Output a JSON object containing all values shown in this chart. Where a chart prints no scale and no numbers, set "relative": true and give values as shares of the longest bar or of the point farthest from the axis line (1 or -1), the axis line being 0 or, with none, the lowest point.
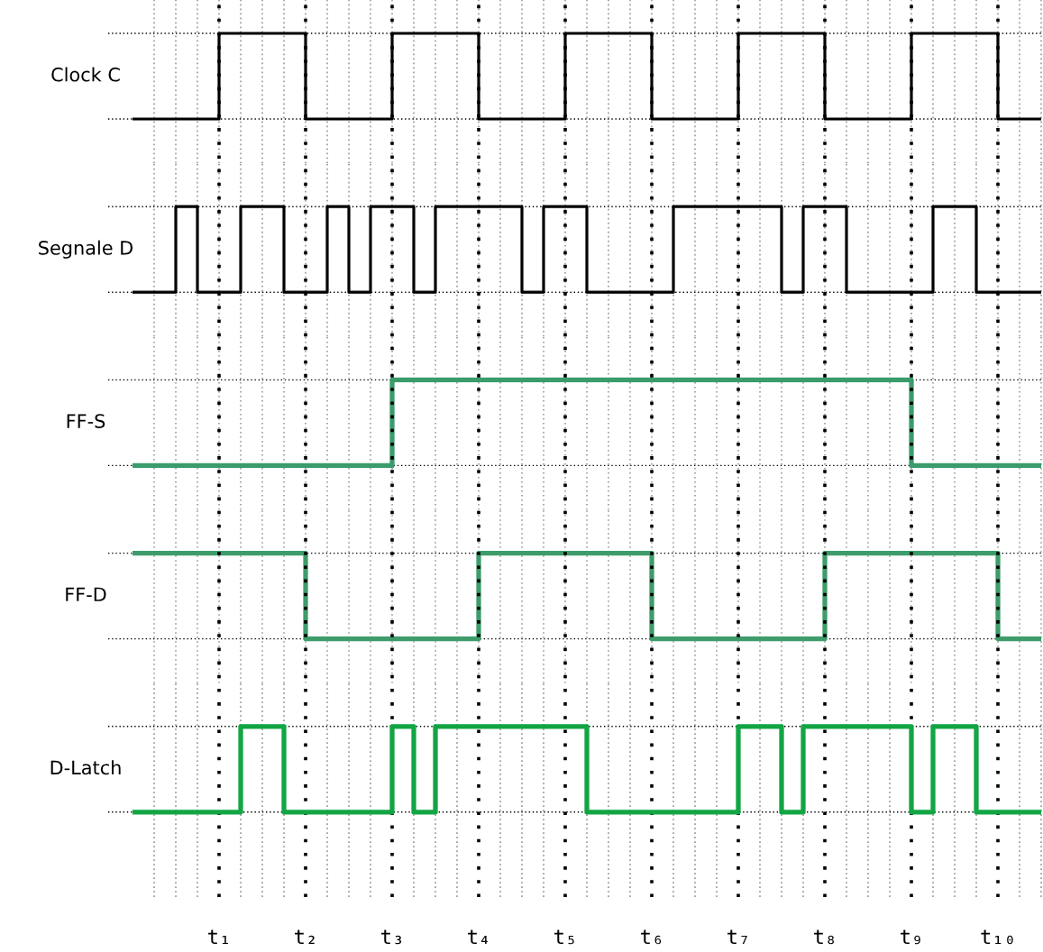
{
  "chart_data": [
    {
      "type": "step",
      "relative": true,
      "ylabel": "Clock C",
      "color": "#000000",
      "grid": true,
      "categories": [
        null,
        null,
        null,
        null,
        null,
        null,
        null,
        null,
        null,
        null,
        null,
        null,
        null,
        null,
        null,
        null,
        null,
        null,
        null,
        null,
        null,
        null,
        null,
        null,
        null,
        null,
        null,
        null,
        null,
        null,
        null,
        null,
        null,
        null,
        null,
        null,
        null,
        null,
        null,
        null,
        null,
        null,
        null
      ],
      "values": [
        0,
        0,
        0,
        0,
        1,
        1,
        1,
        1,
        0,
        0,
        0,
        0,
        1,
        1,
        1,
        1,
        0,
        0,
        0,
        0,
        1,
        1,
        1,
        1,
        0,
        0,
        0,
        0,
        1,
        1,
        1,
        1,
        0,
        0,
        0,
        0,
        1,
        1,
        1,
        1,
        0,
        0,
        0
      ]
    },
    {
      "type": "step",
      "relative": true,
      "ylabel": "Segnale D",
      "color": "#000000",
      "grid": true,
      "categories": [
        null,
        null,
        null,
        null,
        null,
        null,
        null,
        null,
        null,
        null,
        null,
        null,
        null,
        null,
        null,
        null,
        null,
        null,
        null,
        null,
        null,
        null,
        null,
        null,
        null,
        null,
        null,
        null,
        null,
        null,
        null,
        null,
        null,
        null,
        null,
        null,
        null,
        null,
        null,
        null,
        null,
        null,
        null
      ],
      "values": [
        0,
        0,
        1,
        0,
        0,
        1,
        1,
        0,
        0,
        1,
        0,
        1,
        1,
        0,
        1,
        1,
        1,
        1,
        0,
        1,
        1,
        0,
        0,
        0,
        0,
        1,
        1,
        1,
        1,
        1,
        0,
        1,
        1,
        0,
        0,
        0,
        0,
        1,
        1,
        0,
        0,
        0,
        0
      ]
    },
    {
      "type": "step",
      "relative": true,
      "ylabel": "FF-S",
      "color": "#3a9b6b",
      "grid": true,
      "categories": [
        null,
        null,
        null,
        null,
        null,
        null,
        null,
        null,
        null,
        null,
        null,
        null,
        null,
        null,
        null,
        null,
        null,
        null,
        null,
        null,
        null,
        null,
        null,
        null,
        null,
        null,
        null,
        null,
        null,
        null,
        null,
        null,
        null,
        null,
        null,
        null,
        null,
        null,
        null,
        null,
        null,
        null,
        null
      ],
      "values": [
        0,
        0,
        0,
        0,
        0,
        0,
        0,
        0,
        0,
        0,
        0,
        0,
        1,
        1,
        1,
        1,
        1,
        1,
        1,
        1,
        1,
        1,
        1,
        1,
        1,
        1,
        1,
        1,
        1,
        1,
        1,
        1,
        1,
        1,
        1,
        1,
        0,
        0,
        0,
        0,
        0,
        0,
        0
      ]
    },
    {
      "type": "step",
      "relative": true,
      "ylabel": "FF-D",
      "color": "#3e9c6a",
      "grid": true,
      "categories": [
        null,
        null,
        null,
        null,
        null,
        null,
        null,
        null,
        null,
        null,
        null,
        null,
        null,
        null,
        null,
        null,
        null,
        null,
        null,
        null,
        null,
        null,
        null,
        null,
        null,
        null,
        null,
        null,
        null,
        null,
        null,
        null,
        null,
        null,
        null,
        null,
        null,
        null,
        null,
        null,
        null,
        null,
        null
      ],
      "values": [
        1,
        1,
        1,
        1,
        1,
        1,
        1,
        1,
        0,
        0,
        0,
        0,
        0,
        0,
        0,
        0,
        1,
        1,
        1,
        1,
        1,
        1,
        1,
        1,
        0,
        0,
        0,
        0,
        0,
        0,
        0,
        0,
        1,
        1,
        1,
        1,
        1,
        1,
        1,
        1,
        0,
        0,
        0
      ]
    },
    {
      "type": "step",
      "relative": true,
      "ylabel": "D-Latch",
      "color": "#12a544",
      "grid": true,
      "categories": [
        null,
        null,
        null,
        null,
        "t₁",
        null,
        null,
        null,
        "t₂",
        null,
        null,
        null,
        "t₃",
        null,
        null,
        null,
        "t₄",
        null,
        null,
        null,
        "t₅",
        null,
        null,
        null,
        "t₆",
        null,
        null,
        null,
        "t₇",
        null,
        null,
        null,
        "t₈",
        null,
        null,
        null,
        "t₉",
        null,
        null,
        null,
        "t₁₀",
        null,
        null
      ],
      "values": [
        0,
        0,
        0,
        0,
        0,
        1,
        1,
        0,
        0,
        0,
        0,
        0,
        1,
        0,
        1,
        1,
        1,
        1,
        1,
        1,
        1,
        0,
        0,
        0,
        0,
        0,
        0,
        0,
        1,
        1,
        0,
        1,
        1,
        1,
        1,
        1,
        0,
        1,
        1,
        0,
        0,
        0,
        0
      ]
    }
  ]
}
